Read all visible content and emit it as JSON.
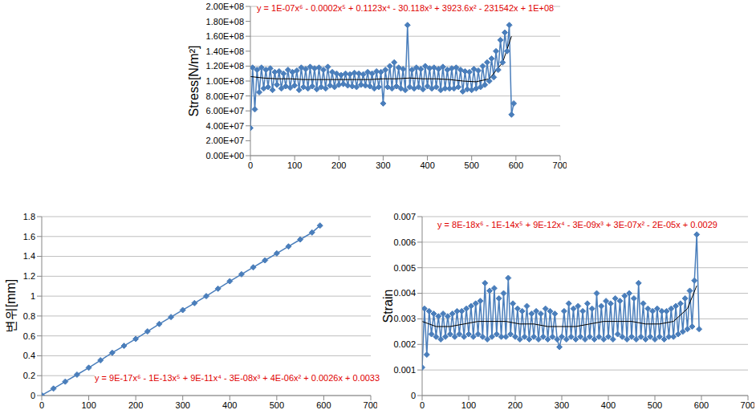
{
  "chart_data": [
    {
      "type": "line",
      "y_label": "Stress[N/m²]",
      "annotation": "y = 1E-07x⁶ - 0.0002x⁵ + 0.1123x⁴ - 30.118x³ + 3923.6x² - 231542x + 1E+08",
      "grid": true,
      "xlim": [
        0,
        700
      ],
      "xticks": [
        0,
        100,
        200,
        300,
        400,
        500,
        600,
        700
      ],
      "ylim": [
        0,
        200000000
      ],
      "yticks": [
        {
          "value": 0,
          "label": "0.00E+00"
        },
        {
          "value": 20000000,
          "label": "2.00E+07"
        },
        {
          "value": 40000000,
          "label": "4.00E+07"
        },
        {
          "value": 60000000,
          "label": "6.00E+07"
        },
        {
          "value": 80000000,
          "label": "8.00E+07"
        },
        {
          "value": 100000000,
          "label": "1.00E+08"
        },
        {
          "value": 120000000,
          "label": "1.20E+08"
        },
        {
          "value": 140000000,
          "label": "1.40E+08"
        },
        {
          "value": 160000000,
          "label": "1.60E+08"
        },
        {
          "value": 180000000,
          "label": "1.80E+08"
        },
        {
          "value": 200000000,
          "label": "2.00E+08"
        }
      ],
      "series": [
        {
          "color": "#4a7ebb",
          "marker": "diamond",
          "line_style": "solid",
          "x": [
            0,
            5,
            10,
            15,
            20,
            25,
            30,
            35,
            40,
            45,
            50,
            55,
            60,
            65,
            70,
            75,
            80,
            85,
            90,
            95,
            100,
            105,
            110,
            115,
            120,
            125,
            130,
            135,
            140,
            145,
            150,
            155,
            160,
            165,
            170,
            175,
            180,
            185,
            190,
            195,
            200,
            205,
            210,
            215,
            220,
            225,
            230,
            235,
            240,
            245,
            250,
            255,
            260,
            265,
            270,
            275,
            280,
            285,
            290,
            295,
            300,
            305,
            310,
            315,
            320,
            325,
            330,
            335,
            340,
            345,
            350,
            355,
            360,
            365,
            370,
            375,
            380,
            385,
            390,
            395,
            400,
            405,
            410,
            415,
            420,
            425,
            430,
            435,
            440,
            445,
            450,
            455,
            460,
            465,
            470,
            475,
            480,
            485,
            490,
            495,
            500,
            505,
            510,
            515,
            520,
            525,
            530,
            535,
            540,
            545,
            550,
            555,
            560,
            565,
            570,
            575,
            580,
            585,
            590,
            595
          ],
          "values": [
            37000000.0,
            118000000.0,
            62000000.0,
            115000000.0,
            85000000.0,
            118000000.0,
            90000000.0,
            115000000.0,
            92000000.0,
            117000000.0,
            88000000.0,
            112000000.0,
            95000000.0,
            113000000.0,
            90000000.0,
            110000000.0,
            93000000.0,
            115000000.0,
            91000000.0,
            112000000.0,
            94000000.0,
            114000000.0,
            88000000.0,
            118000000.0,
            92000000.0,
            116000000.0,
            90000000.0,
            119000000.0,
            93000000.0,
            117000000.0,
            89000000.0,
            118000000.0,
            92000000.0,
            115000000.0,
            90000000.0,
            119000000.0,
            94000000.0,
            112000000.0,
            92000000.0,
            110000000.0,
            95000000.0,
            108000000.0,
            96000000.0,
            110000000.0,
            94000000.0,
            109000000.0,
            93000000.0,
            111000000.0,
            92000000.0,
            110000000.0,
            95000000.0,
            109000000.0,
            94000000.0,
            112000000.0,
            93000000.0,
            110000000.0,
            90000000.0,
            113000000.0,
            92000000.0,
            112000000.0,
            70000000.0,
            115000000.0,
            92000000.0,
            120000000.0,
            90000000.0,
            125000000.0,
            93000000.0,
            118000000.0,
            90000000.0,
            116000000.0,
            88000000.0,
            175000000.0,
            92000000.0,
            115000000.0,
            90000000.0,
            118000000.0,
            92000000.0,
            116000000.0,
            89000000.0,
            120000000.0,
            93000000.0,
            117000000.0,
            90000000.0,
            118000000.0,
            92000000.0,
            116000000.0,
            88000000.0,
            119000000.0,
            90000000.0,
            115000000.0,
            90000000.0,
            117000000.0,
            90000000.0,
            118000000.0,
            92000000.0,
            115000000.0,
            86000000.0,
            113000000.0,
            89000000.0,
            112000000.0,
            88000000.0,
            116000000.0,
            90000000.0,
            114000000.0,
            92000000.0,
            120000000.0,
            95000000.0,
            125000000.0,
            100000000.0,
            130000000.0,
            105000000.0,
            140000000.0,
            115000000.0,
            155000000.0,
            125000000.0,
            165000000.0,
            140000000.0,
            175000000.0,
            55000000.0,
            70000000.0
          ]
        },
        {
          "color": "#000000",
          "marker": "none",
          "line_style": "solid",
          "x": [
            0,
            30,
            60,
            90,
            120,
            150,
            180,
            210,
            240,
            270,
            300,
            330,
            360,
            390,
            420,
            450,
            480,
            510,
            540,
            570,
            590
          ],
          "values": [
            106000000.0,
            104000000.0,
            103000000.0,
            103000000.0,
            102000000.0,
            102000000.0,
            102000000.0,
            102000000.0,
            102000000.0,
            102000000.0,
            103000000.0,
            103000000.0,
            104000000.0,
            103000000.0,
            103000000.0,
            102000000.0,
            100000000.0,
            99000000.0,
            103000000.0,
            125000000.0,
            160000000.0
          ]
        }
      ]
    },
    {
      "type": "line",
      "y_label": "변위[mm]",
      "annotation": "y = 9E-17x⁶ - 1E-13x⁵ + 9E-11x⁴ - 3E-08x³ + 4E-06x² + 0.0026x + 0.0033",
      "grid": true,
      "xlim": [
        0,
        700
      ],
      "xticks": [
        0,
        100,
        200,
        300,
        400,
        500,
        600,
        700
      ],
      "ylim": [
        0,
        1.8
      ],
      "yticks": [
        0,
        0.2,
        0.4,
        0.6,
        0.8,
        1,
        1.2,
        1.4,
        1.6,
        1.8
      ],
      "series": [
        {
          "color": "#4a7ebb",
          "marker": "diamond",
          "line_style": "solid",
          "x": [
            0,
            25,
            50,
            75,
            100,
            125,
            150,
            175,
            200,
            225,
            250,
            275,
            300,
            325,
            350,
            375,
            400,
            425,
            450,
            475,
            500,
            525,
            550,
            575,
            592
          ],
          "values": [
            0.003,
            0.07,
            0.14,
            0.21,
            0.28,
            0.355,
            0.43,
            0.5,
            0.57,
            0.645,
            0.72,
            0.79,
            0.86,
            0.93,
            1.0,
            1.075,
            1.15,
            1.22,
            1.29,
            1.36,
            1.43,
            1.5,
            1.57,
            1.64,
            1.71
          ]
        }
      ]
    },
    {
      "type": "line",
      "y_label": "Strain",
      "annotation": "y = 8E-18x⁶ - 1E-14x⁵ + 9E-12x⁴ - 3E-09x³ + 3E-07x² - 2E-05x + 0.0029",
      "grid": true,
      "xlim": [
        0,
        700
      ],
      "xticks": [
        0,
        100,
        200,
        300,
        400,
        500,
        600,
        700
      ],
      "ylim": [
        0,
        0.007
      ],
      "yticks": [
        0,
        0.001,
        0.002,
        0.003,
        0.004,
        0.005,
        0.006,
        0.007
      ],
      "series": [
        {
          "color": "#4a7ebb",
          "marker": "diamond",
          "line_style": "solid",
          "x": [
            0,
            5,
            10,
            15,
            20,
            25,
            30,
            35,
            40,
            45,
            50,
            55,
            60,
            65,
            70,
            75,
            80,
            85,
            90,
            95,
            100,
            105,
            110,
            115,
            120,
            125,
            130,
            135,
            140,
            145,
            150,
            155,
            160,
            165,
            170,
            175,
            180,
            185,
            190,
            195,
            200,
            205,
            210,
            215,
            220,
            225,
            230,
            235,
            240,
            245,
            250,
            255,
            260,
            265,
            270,
            275,
            280,
            285,
            290,
            295,
            300,
            305,
            310,
            315,
            320,
            325,
            330,
            335,
            340,
            345,
            350,
            355,
            360,
            365,
            370,
            375,
            380,
            385,
            390,
            395,
            400,
            405,
            410,
            415,
            420,
            425,
            430,
            435,
            440,
            445,
            450,
            455,
            460,
            465,
            470,
            475,
            480,
            485,
            490,
            495,
            500,
            505,
            510,
            515,
            520,
            525,
            530,
            535,
            540,
            545,
            550,
            555,
            560,
            565,
            570,
            575,
            580,
            585,
            590,
            595
          ],
          "values": [
            0.0011,
            0.0034,
            0.0016,
            0.0033,
            0.0024,
            0.0032,
            0.0023,
            0.0031,
            0.0022,
            0.0032,
            0.0023,
            0.0031,
            0.0024,
            0.0032,
            0.0023,
            0.0033,
            0.0024,
            0.0033,
            0.0023,
            0.0034,
            0.0024,
            0.0035,
            0.0023,
            0.0036,
            0.0024,
            0.0037,
            0.0023,
            0.0044,
            0.0022,
            0.0041,
            0.0023,
            0.0042,
            0.0024,
            0.0038,
            0.0023,
            0.004,
            0.0023,
            0.0046,
            0.0024,
            0.0036,
            0.0023,
            0.0034,
            0.0022,
            0.0033,
            0.0023,
            0.0035,
            0.0022,
            0.0032,
            0.0023,
            0.0033,
            0.0022,
            0.0032,
            0.0023,
            0.0034,
            0.0022,
            0.0033,
            0.0023,
            0.0032,
            0.0022,
            0.0019,
            0.0023,
            0.0033,
            0.0022,
            0.0036,
            0.0023,
            0.0034,
            0.0022,
            0.0035,
            0.0023,
            0.0033,
            0.0022,
            0.0036,
            0.0023,
            0.0034,
            0.0022,
            0.004,
            0.0023,
            0.0035,
            0.0022,
            0.0037,
            0.0023,
            0.0036,
            0.0022,
            0.0038,
            0.0024,
            0.0037,
            0.0023,
            0.0039,
            0.0022,
            0.004,
            0.0023,
            0.0038,
            0.0022,
            0.0044,
            0.0023,
            0.0036,
            0.0022,
            0.0034,
            0.0023,
            0.0033,
            0.0022,
            0.0034,
            0.0023,
            0.0033,
            0.0022,
            0.0033,
            0.0023,
            0.0034,
            0.0023,
            0.0035,
            0.0024,
            0.0036,
            0.0025,
            0.0038,
            0.0026,
            0.0041,
            0.0027,
            0.0045,
            0.0063,
            0.0026
          ]
        },
        {
          "color": "#000000",
          "marker": "none",
          "line_style": "solid",
          "x": [
            0,
            30,
            60,
            90,
            120,
            150,
            180,
            210,
            240,
            270,
            300,
            330,
            360,
            390,
            420,
            450,
            480,
            510,
            540,
            570,
            590
          ],
          "values": [
            0.0029,
            0.0027,
            0.0027,
            0.0028,
            0.0029,
            0.0029,
            0.0029,
            0.0028,
            0.0028,
            0.0027,
            0.0027,
            0.0027,
            0.0028,
            0.0029,
            0.0029,
            0.0029,
            0.0028,
            0.0028,
            0.0029,
            0.0034,
            0.0043
          ]
        }
      ]
    }
  ]
}
